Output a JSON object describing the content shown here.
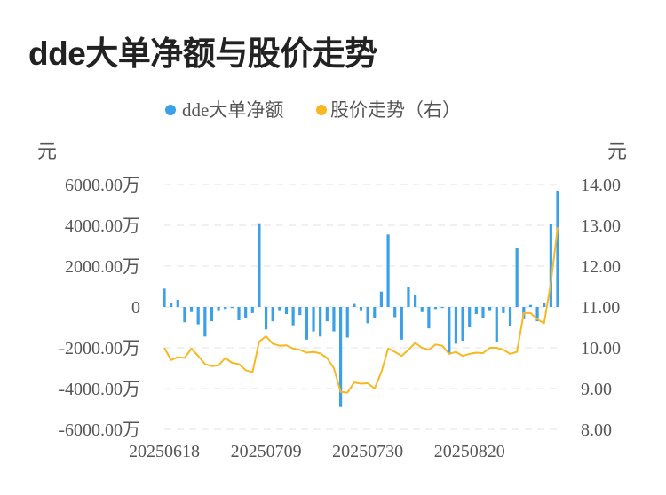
{
  "title": "dde大单净额与股价走势",
  "chart_data": {
    "type": "bar+line",
    "legend": [
      {
        "name": "dde大单净额",
        "color": "#3ba0e6"
      },
      {
        "name": "股价走势（右）",
        "color": "#f7b821"
      }
    ],
    "left_unit": "元",
    "right_unit": "元",
    "left_ticks": [
      "6000.00万",
      "4000.00万",
      "2000.00万",
      "0",
      "-2000.00万",
      "-4000.00万",
      "-6000.00万"
    ],
    "right_ticks": [
      "14.00",
      "13.00",
      "12.00",
      "11.00",
      "10.00",
      "9.00",
      "8.00"
    ],
    "x_tick_labels": [
      "20250618",
      "20250709",
      "20250730",
      "20250820"
    ],
    "x_tick_indices": [
      0,
      15,
      30,
      45
    ],
    "ylim_left": [
      -6000,
      6000
    ],
    "ylim_right": [
      8.0,
      14.0
    ],
    "grid": true,
    "legend_position": "top",
    "bar_values": [
      900,
      200,
      350,
      -750,
      -250,
      -850,
      -1450,
      -700,
      -200,
      -100,
      -50,
      -650,
      -550,
      -300,
      4100,
      -1100,
      -700,
      -200,
      -350,
      -900,
      -400,
      -1600,
      -1200,
      -1450,
      -700,
      -1200,
      -4900,
      -1500,
      150,
      -200,
      -800,
      -550,
      750,
      3550,
      -500,
      -1600,
      1000,
      600,
      -250,
      -1050,
      -100,
      -50,
      -2300,
      -1800,
      -1650,
      -1000,
      -350,
      -550,
      -200,
      -1700,
      -300,
      -950,
      2900,
      -600,
      100,
      -700,
      200,
      4050,
      5700
    ],
    "line_values": [
      10.0,
      9.7,
      9.77,
      9.75,
      9.98,
      9.8,
      9.6,
      9.55,
      9.57,
      9.75,
      9.63,
      9.6,
      9.45,
      9.4,
      10.15,
      10.28,
      10.1,
      10.05,
      10.06,
      9.98,
      9.95,
      9.88,
      9.9,
      9.86,
      9.75,
      9.5,
      8.92,
      8.9,
      9.15,
      9.12,
      9.13,
      9.0,
      9.4,
      9.98,
      9.9,
      9.8,
      9.95,
      10.12,
      10.0,
      9.95,
      10.08,
      10.05,
      9.85,
      9.9,
      9.8,
      9.85,
      9.88,
      9.87,
      10.0,
      10.0,
      9.95,
      9.85,
      9.9,
      10.85,
      10.85,
      10.7,
      10.6,
      11.6,
      12.95
    ]
  }
}
